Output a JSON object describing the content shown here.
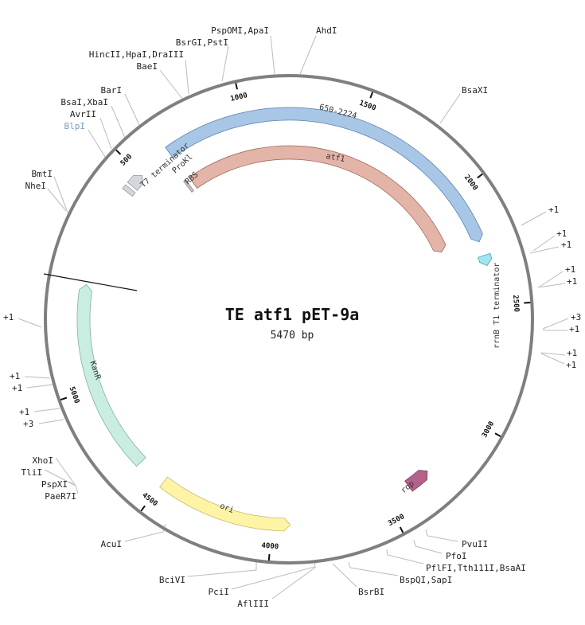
{
  "title": "TE atf1 pET-9a",
  "length_label": "5470 bp",
  "length_bp": 5470,
  "ticks": [
    500,
    1000,
    1500,
    2000,
    2500,
    3000,
    3500,
    4000,
    4500,
    5000
  ],
  "tick_labels": [
    "500",
    "1000",
    "1500",
    "2000",
    "2500",
    "3000",
    "3500",
    "4000",
    "4500",
    "5000"
  ],
  "features": [
    {
      "name": "650-2224",
      "label": "650-2224",
      "start": 650,
      "end": 2224,
      "direction": "forward",
      "ring": "outer",
      "fill": "#a8c6e6",
      "stroke": "#5d82b0"
    },
    {
      "name": "atf1",
      "label": "atf1",
      "start": 660,
      "end": 2200,
      "direction": "forward",
      "ring": "inner",
      "fill": "#e3b4a8",
      "stroke": "#a4695b"
    },
    {
      "name": "rrnB T1 terminator",
      "label": "rrnB T1 terminator",
      "start": 2285,
      "end": 2330,
      "direction": "forward",
      "ring": "outer",
      "fill": "#a3e4ee",
      "stroke": "#4aa6b8"
    },
    {
      "name": "T7 terminator box",
      "label": "",
      "start": 405,
      "end": 425,
      "direction": "none",
      "ring": "outer",
      "fill": "#d5d6dc",
      "stroke": "#9a9ba3"
    },
    {
      "name": "T7 terminator",
      "label": "T7 terminator",
      "start": 438,
      "end": 500,
      "direction": "forward",
      "ring": "outer",
      "fill": "#d5d6dc",
      "stroke": "#9a9ba3"
    },
    {
      "name": "RBS",
      "label": "RBS",
      "start": 625,
      "end": 638,
      "direction": "none",
      "ring": "inner",
      "fill": "#c9c5c5",
      "stroke": "#8c8888"
    },
    {
      "name": "KanR",
      "label": "KanR",
      "start": 4627,
      "end": 5443,
      "direction": "forward",
      "ring": "outer",
      "fill": "#c9ede1",
      "stroke": "#7fb3a0"
    },
    {
      "name": "ori",
      "label": "ori",
      "start": 3922,
      "end": 4499,
      "direction": "reverse",
      "ring": "outer",
      "fill": "#fff3a6",
      "stroke": "#cbb86a"
    },
    {
      "name": "rop",
      "label": "rop",
      "start": 3284,
      "end": 3386,
      "direction": "reverse",
      "ring": "outer",
      "fill": "#b5628b",
      "stroke": "#7d3b5c"
    }
  ],
  "promoter_label": "ProKl",
  "sites": {
    "pspomi_apai": "PspOMI,ApaI",
    "ahdi": "AhdI",
    "bsrgi_psti": "BsrGI,PstI",
    "hincii_hpai_draiii": "HincII,HpaI,DraIII",
    "baei": "BaeI",
    "bari": "BarI",
    "bsai_xbai": "BsaI,XbaI",
    "avrii": "AvrII",
    "blpi": "BlpI",
    "bmti": "BmtI",
    "nhei": "NheI",
    "bsaxi": "BsaXI",
    "r1": "+1",
    "r2": "+1",
    "r3": "+1",
    "r4": "+1",
    "r5": "+1",
    "r6": "+3",
    "r7": "+1",
    "r8": "+1",
    "r9": "+1",
    "l1": "+1",
    "l2": "+1",
    "l3": "+1",
    "l4": "+1",
    "l5": "+3",
    "xhoi": "XhoI",
    "tlii": "TliI",
    "pspxi": "PspXI",
    "paer7i": "PaeR7I",
    "acui": "AcuI",
    "bcivi": "BciVI",
    "pcii": "PciI",
    "afliii": "AflIII",
    "bsrbi": "BsrBI",
    "bspqi_sapi": "BspQI,SapI",
    "pflfi": "PflFI,Tth111I,BsaAI",
    "pfoi": "PfoI",
    "pvuii": "PvuII"
  },
  "colors": {
    "backbone": "#7f7f7f",
    "blpi": "#7a9cc0"
  }
}
